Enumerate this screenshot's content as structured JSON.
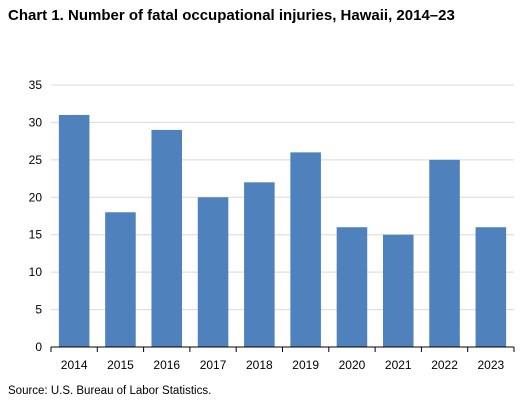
{
  "chart_data": {
    "type": "bar",
    "title": "Chart 1. Number of fatal occupational injuries,  Hawaii, 2014–23",
    "categories": [
      "2014",
      "2015",
      "2016",
      "2017",
      "2018",
      "2019",
      "2020",
      "2021",
      "2022",
      "2023"
    ],
    "values": [
      31,
      18,
      29,
      20,
      22,
      26,
      16,
      15,
      25,
      16
    ],
    "ylim": [
      0,
      35
    ],
    "yticks": [
      0,
      5,
      10,
      15,
      20,
      25,
      30,
      35
    ],
    "xlabel": "",
    "ylabel": "",
    "grid": true,
    "bar_color": "#4f81bd",
    "source": "Source:  U.S. Bureau  of Labor Statistics."
  }
}
